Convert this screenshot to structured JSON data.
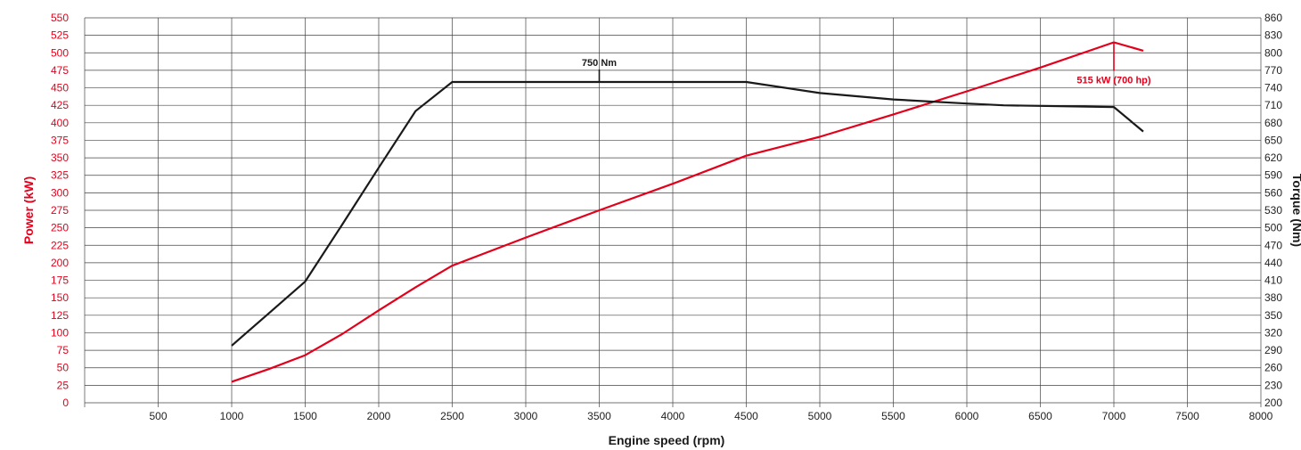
{
  "colors": {
    "power": "#e3001b",
    "torque": "#1a1a1a",
    "grid": "#444444",
    "tick_left": "#e3001b",
    "tick_right": "#222222"
  },
  "chart_data": {
    "type": "line",
    "xlabel": "Engine speed (rpm)",
    "ylabel_left": "Power (kW)",
    "ylabel_right": "Torque (Nm)",
    "xlim": [
      0,
      8000
    ],
    "ylim_left": [
      0,
      550
    ],
    "ylim_right": [
      200,
      860
    ],
    "grid": true,
    "x_ticks": [
      "500",
      "1000",
      "1500",
      "2000",
      "2500",
      "3000",
      "3500",
      "4000",
      "4500",
      "5000",
      "5500",
      "6000",
      "6500",
      "7000",
      "7500",
      "8000"
    ],
    "left_ticks": [
      "0",
      "25",
      "50",
      "75",
      "100",
      "125",
      "150",
      "175",
      "200",
      "225",
      "250",
      "275",
      "300",
      "325",
      "350",
      "375",
      "400",
      "425",
      "450",
      "475",
      "500",
      "525",
      "550"
    ],
    "right_ticks": [
      "200",
      "230",
      "260",
      "290",
      "320",
      "350",
      "380",
      "410",
      "440",
      "470",
      "500",
      "530",
      "560",
      "590",
      "620",
      "650",
      "680",
      "710",
      "740",
      "770",
      "800",
      "830",
      "860"
    ],
    "series": [
      {
        "name": "Power (kW)",
        "axis": "left",
        "color": "#e3001b",
        "x": [
          1000,
          1250,
          1500,
          1750,
          2000,
          2250,
          2500,
          3000,
          3500,
          4000,
          4500,
          5000,
          5500,
          6000,
          6500,
          7000,
          7200
        ],
        "y": [
          30,
          48,
          68,
          98,
          132,
          165,
          196,
          236,
          275,
          313,
          353,
          380,
          412,
          445,
          479,
          515,
          503
        ]
      },
      {
        "name": "Torque (Nm)",
        "axis": "right",
        "color": "#1a1a1a",
        "x": [
          1000,
          1250,
          1500,
          1750,
          2000,
          2250,
          2500,
          3000,
          3500,
          4000,
          4500,
          5000,
          5500,
          6000,
          6250,
          7000,
          7200
        ],
        "y": [
          298,
          353,
          408,
          505,
          603,
          700,
          750,
          750,
          750,
          750,
          750,
          731,
          720,
          713,
          710,
          707,
          665
        ]
      }
    ],
    "annotations": [
      {
        "text": "750 Nm",
        "x": 3500,
        "y": 750,
        "axis": "right",
        "color": "#1a1a1a"
      },
      {
        "text": "515 kW (700 hp)",
        "x": 7000,
        "y": 515,
        "axis": "left",
        "color": "#e3001b"
      }
    ]
  }
}
